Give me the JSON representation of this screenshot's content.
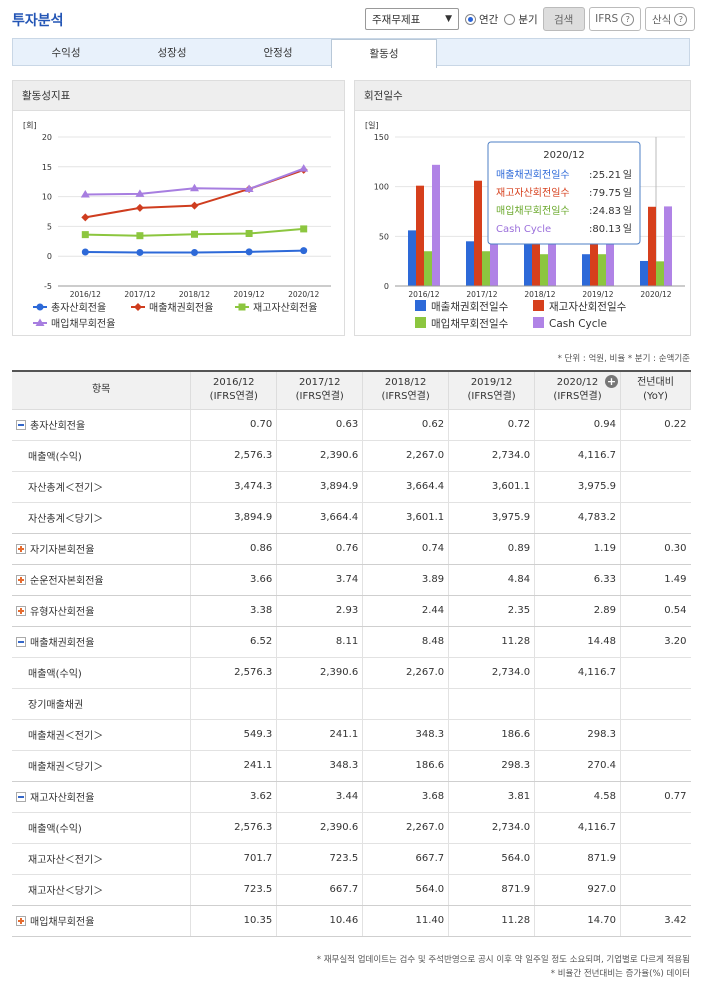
{
  "title": "투자분석",
  "controls": {
    "dropdown": "주재무제표",
    "radio_annual": "연간",
    "radio_quarter": "분기",
    "search": "검색",
    "ifrs": "IFRS",
    "formula": "산식"
  },
  "tabs": [
    "수익성",
    "성장성",
    "안정성",
    "활동성"
  ],
  "left_panel": {
    "title": "활동성지표"
  },
  "right_panel": {
    "title": "회전일수"
  },
  "chart_data": [
    {
      "type": "line",
      "title": "활동성지표",
      "ylabel": "[회]",
      "ylim": [
        -5,
        20
      ],
      "y_ticks": [
        -5,
        0,
        5,
        10,
        15,
        20
      ],
      "x": [
        "2016/12",
        "2017/12",
        "2018/12",
        "2019/12",
        "2020/12"
      ],
      "series": [
        {
          "name": "총자산회전율",
          "color": "#2d69d8",
          "marker": "circle",
          "values": [
            0.7,
            0.63,
            0.62,
            0.72,
            0.94
          ]
        },
        {
          "name": "매출채권회전율",
          "color": "#cf3d1f",
          "marker": "diamond",
          "values": [
            6.52,
            8.11,
            8.48,
            11.28,
            14.48
          ]
        },
        {
          "name": "재고자산회전율",
          "color": "#8cc63f",
          "marker": "square",
          "values": [
            3.62,
            3.44,
            3.68,
            3.81,
            4.58
          ]
        },
        {
          "name": "매입채무회전율",
          "color": "#a77ee0",
          "marker": "triangle",
          "values": [
            10.35,
            10.46,
            11.4,
            11.28,
            14.7
          ]
        }
      ]
    },
    {
      "type": "bar",
      "title": "회전일수",
      "ylabel": "[일]",
      "ylim": [
        0,
        150
      ],
      "y_ticks": [
        0,
        50,
        100,
        150
      ],
      "categories": [
        "2016/12",
        "2017/12",
        "2018/12",
        "2019/12",
        "2020/12"
      ],
      "series": [
        {
          "name": "매출채권회전일수",
          "color": "#2d69d8",
          "values": [
            56,
            45,
            43,
            32,
            25.21
          ]
        },
        {
          "name": "재고자산회전일수",
          "color": "#d63f1c",
          "values": [
            101,
            106,
            99,
            96,
            79.75
          ]
        },
        {
          "name": "매입채무회전일수",
          "color": "#8cc63f",
          "values": [
            35,
            35,
            32,
            32,
            24.83
          ]
        },
        {
          "name": "Cash Cycle",
          "color": "#b083e6",
          "values": [
            122,
            116,
            110,
            96,
            80.13
          ]
        }
      ],
      "tooltip": {
        "title": "2020/12",
        "rows": [
          {
            "label": "매출채권회전일수",
            "value": ":25.21",
            "unit": "일",
            "color": "#2d69d8"
          },
          {
            "label": "재고자산회전일수",
            "value": ":79.75",
            "unit": "일",
            "color": "#d63f1c"
          },
          {
            "label": "매입채무회전일수",
            "value": ":24.83",
            "unit": "일",
            "color": "#6aa82b"
          },
          {
            "label": "Cash Cycle",
            "value": ":80.13",
            "unit": "일",
            "color": "#9b6fdb"
          }
        ]
      }
    }
  ],
  "unit_note": "* 단위 : 억원, 비율   * 분기 : 순액기준",
  "table": {
    "headers": [
      [
        "항목",
        ""
      ],
      [
        "2016/12",
        "(IFRS연결)"
      ],
      [
        "2017/12",
        "(IFRS연결)"
      ],
      [
        "2018/12",
        "(IFRS연결)"
      ],
      [
        "2019/12",
        "(IFRS연결)"
      ],
      [
        "2020/12",
        "(IFRS연결)"
      ],
      [
        "전년대비",
        "(YoY)"
      ]
    ],
    "rows": [
      {
        "label": "총자산회전율",
        "kind": "minus",
        "cells": [
          "0.70",
          "0.63",
          "0.62",
          "0.72",
          "0.94",
          "0.22"
        ]
      },
      {
        "label": "매출액(수익)",
        "kind": "sub",
        "cells": [
          "2,576.3",
          "2,390.6",
          "2,267.0",
          "2,734.0",
          "4,116.7",
          ""
        ]
      },
      {
        "label": "자산총계＜전기＞",
        "kind": "sub",
        "cells": [
          "3,474.3",
          "3,894.9",
          "3,664.4",
          "3,601.1",
          "3,975.9",
          ""
        ]
      },
      {
        "label": "자산총계＜당기＞",
        "kind": "sub",
        "cells": [
          "3,894.9",
          "3,664.4",
          "3,601.1",
          "3,975.9",
          "4,783.2",
          ""
        ]
      },
      {
        "label": "자기자본회전율",
        "kind": "plus",
        "cells": [
          "0.86",
          "0.76",
          "0.74",
          "0.89",
          "1.19",
          "0.30"
        ]
      },
      {
        "label": "순운전자본회전율",
        "kind": "plus",
        "cells": [
          "3.66",
          "3.74",
          "3.89",
          "4.84",
          "6.33",
          "1.49"
        ]
      },
      {
        "label": "유형자산회전율",
        "kind": "plus",
        "cells": [
          "3.38",
          "2.93",
          "2.44",
          "2.35",
          "2.89",
          "0.54"
        ]
      },
      {
        "label": "매출채권회전율",
        "kind": "minus",
        "cells": [
          "6.52",
          "8.11",
          "8.48",
          "11.28",
          "14.48",
          "3.20"
        ]
      },
      {
        "label": "매출액(수익)",
        "kind": "sub",
        "cells": [
          "2,576.3",
          "2,390.6",
          "2,267.0",
          "2,734.0",
          "4,116.7",
          ""
        ]
      },
      {
        "label": "장기매출채권",
        "kind": "sub",
        "cells": [
          "",
          "",
          "",
          "",
          "",
          ""
        ]
      },
      {
        "label": "매출채권＜전기＞",
        "kind": "sub",
        "cells": [
          "549.3",
          "241.1",
          "348.3",
          "186.6",
          "298.3",
          ""
        ]
      },
      {
        "label": "매출채권＜당기＞",
        "kind": "sub",
        "cells": [
          "241.1",
          "348.3",
          "186.6",
          "298.3",
          "270.4",
          ""
        ]
      },
      {
        "label": "재고자산회전율",
        "kind": "minus",
        "cells": [
          "3.62",
          "3.44",
          "3.68",
          "3.81",
          "4.58",
          "0.77"
        ]
      },
      {
        "label": "매출액(수익)",
        "kind": "sub",
        "cells": [
          "2,576.3",
          "2,390.6",
          "2,267.0",
          "2,734.0",
          "4,116.7",
          ""
        ]
      },
      {
        "label": "재고자산＜전기＞",
        "kind": "sub",
        "cells": [
          "701.7",
          "723.5",
          "667.7",
          "564.0",
          "871.9",
          ""
        ]
      },
      {
        "label": "재고자산＜당기＞",
        "kind": "sub",
        "cells": [
          "723.5",
          "667.7",
          "564.0",
          "871.9",
          "927.0",
          ""
        ]
      },
      {
        "label": "매입채무회전율",
        "kind": "plus",
        "cells": [
          "10.35",
          "10.46",
          "11.40",
          "11.28",
          "14.70",
          "3.42"
        ]
      }
    ]
  },
  "footnotes": [
    "* 재무실적 업데이트는 검수 및 주석반영으로 공시 이후 약 일주일 정도 소요되며, 기업별로 다르게 적용됨",
    "* 비율간 전년대비는 증가율(%) 데이터"
  ]
}
